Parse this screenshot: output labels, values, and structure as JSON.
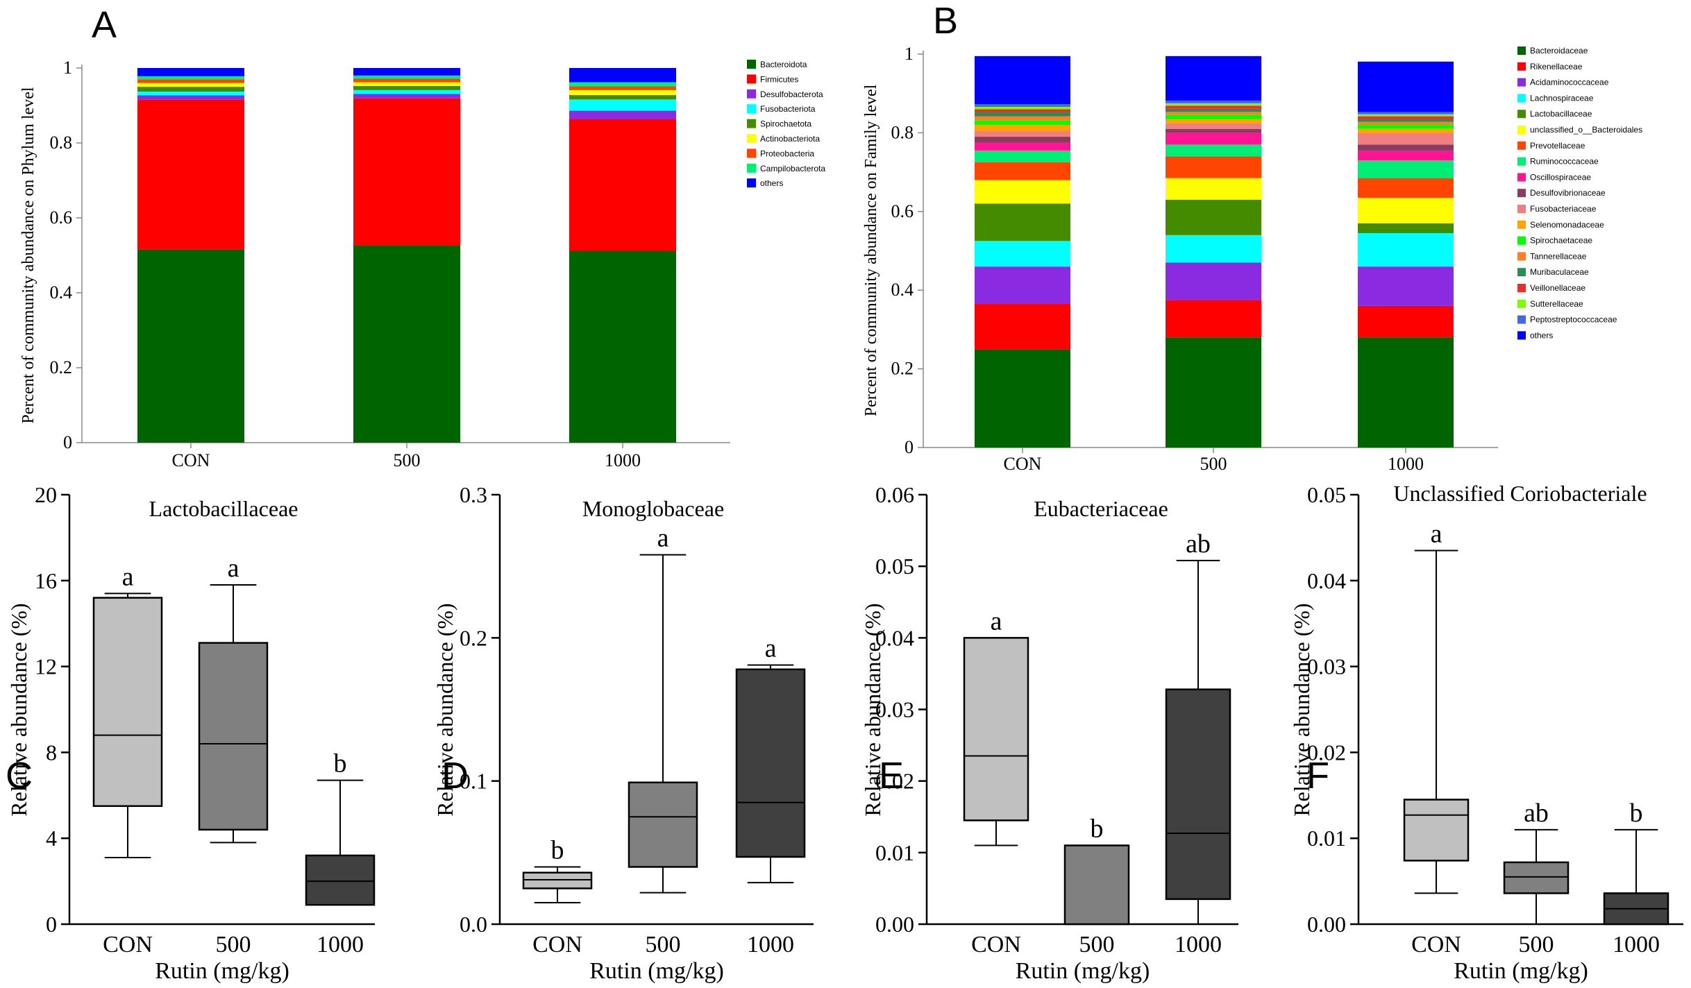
{
  "figure": {
    "background": "#ffffff"
  },
  "chart_data": [
    {
      "id": "A",
      "type": "bar",
      "stacked": true,
      "panel_label": "A",
      "ylabel": "Percent of community abundance on Phylum level",
      "xlabel": "",
      "ylim": [
        0,
        1
      ],
      "yticks": [
        0,
        0.2,
        0.4,
        0.6,
        0.8,
        1
      ],
      "ytick_labels": [
        "0",
        "0.2",
        "0.4",
        "0.6",
        "0.8",
        "1"
      ],
      "categories": [
        "CON",
        "500",
        "1000"
      ],
      "legend_position": "right",
      "series": [
        {
          "name": "Bacteroidota",
          "color": "#006400",
          "values": [
            0.515,
            0.527,
            0.512
          ]
        },
        {
          "name": "Firmicutes",
          "color": "#ff0000",
          "values": [
            0.4,
            0.392,
            0.352
          ]
        },
        {
          "name": "Desulfobacterota",
          "color": "#8a2be2",
          "values": [
            0.012,
            0.012,
            0.022
          ]
        },
        {
          "name": "Fusobacteriota",
          "color": "#00ffff",
          "values": [
            0.01,
            0.01,
            0.03
          ]
        },
        {
          "name": "Spirochaetota",
          "color": "#458b00",
          "values": [
            0.013,
            0.011,
            0.012
          ]
        },
        {
          "name": "Actinobacteriota",
          "color": "#ffff00",
          "values": [
            0.01,
            0.01,
            0.013
          ]
        },
        {
          "name": "Proteobacteria",
          "color": "#ff4500",
          "values": [
            0.01,
            0.01,
            0.01
          ]
        },
        {
          "name": "Campilobacterota",
          "color": "#00ee76",
          "values": [
            0.008,
            0.008,
            0.011
          ]
        },
        {
          "name": "others",
          "color": "#0000ff",
          "values": [
            0.022,
            0.02,
            0.038
          ]
        }
      ]
    },
    {
      "id": "B",
      "type": "bar",
      "stacked": true,
      "panel_label": "B",
      "ylabel": "Percent of community abundance on Family level",
      "xlabel": "",
      "ylim": [
        0,
        1
      ],
      "yticks": [
        0,
        0.2,
        0.4,
        0.6,
        0.8,
        1
      ],
      "ytick_labels": [
        "0",
        "0.2",
        "0.4",
        "0.6",
        "0.8",
        "1"
      ],
      "categories": [
        "CON",
        "500",
        "1000"
      ],
      "legend_position": "right",
      "series": [
        {
          "name": "Bacteroidaceae",
          "color": "#006400",
          "values": [
            0.25,
            0.28,
            0.28
          ]
        },
        {
          "name": "Rikenellaceae",
          "color": "#ff0000",
          "values": [
            0.115,
            0.095,
            0.08
          ]
        },
        {
          "name": "Acidaminococcaceae",
          "color": "#8a2be2",
          "values": [
            0.095,
            0.095,
            0.1
          ]
        },
        {
          "name": "Lachnospiraceae",
          "color": "#00ffff",
          "values": [
            0.065,
            0.07,
            0.085
          ]
        },
        {
          "name": "Lactobacillaceae",
          "color": "#458b00",
          "values": [
            0.095,
            0.09,
            0.025
          ]
        },
        {
          "name": "unclassified_o__Bacteroidales",
          "color": "#ffff00",
          "values": [
            0.06,
            0.055,
            0.065
          ]
        },
        {
          "name": "Prevotellaceae",
          "color": "#ff4500",
          "values": [
            0.045,
            0.055,
            0.05
          ]
        },
        {
          "name": "Ruminococcaceae",
          "color": "#00ee76",
          "values": [
            0.03,
            0.03,
            0.045
          ]
        },
        {
          "name": "Oscillospiraceae",
          "color": "#ff1493",
          "values": [
            0.02,
            0.03,
            0.025
          ]
        },
        {
          "name": "Desulfovibrionaceae",
          "color": "#8b3a62",
          "values": [
            0.015,
            0.01,
            0.015
          ]
        },
        {
          "name": "Fusobacteriaceae",
          "color": "#f08080",
          "values": [
            0.015,
            0.015,
            0.03
          ]
        },
        {
          "name": "Selenomonadaceae",
          "color": "#ffa500",
          "values": [
            0.015,
            0.01,
            0.01
          ]
        },
        {
          "name": "Spirochaetaceae",
          "color": "#00ff00",
          "values": [
            0.012,
            0.01,
            0.01
          ]
        },
        {
          "name": "Tannerellaceae",
          "color": "#ff7f24",
          "values": [
            0.01,
            0.008,
            0.008
          ]
        },
        {
          "name": "Muribaculaceae",
          "color": "#2e8b57",
          "values": [
            0.01,
            0.008,
            0.008
          ]
        },
        {
          "name": "Veillonellaceae",
          "color": "#ee2c2c",
          "values": [
            0.008,
            0.008,
            0.006
          ]
        },
        {
          "name": "Sutterellaceae",
          "color": "#7cfc00",
          "values": [
            0.006,
            0.006,
            0.005
          ]
        },
        {
          "name": "Peptostreptococcaceae",
          "color": "#4169e1",
          "values": [
            0.007,
            0.007,
            0.006
          ]
        },
        {
          "name": "others",
          "color": "#0000ff",
          "values": [
            0.122,
            0.113,
            0.128
          ]
        }
      ]
    },
    {
      "id": "C",
      "type": "box",
      "panel_label": "C",
      "title": "Lactobacillaceae",
      "ylabel": "Relative abundance (%)",
      "xlabel": "Rutin (mg/kg)",
      "ylim": [
        0,
        20
      ],
      "yticks": [
        0,
        4,
        8,
        12,
        16,
        20
      ],
      "ytick_labels": [
        "0",
        "4",
        "8",
        "12",
        "16",
        "20"
      ],
      "categories": [
        "CON",
        "500",
        "1000"
      ],
      "colors": [
        "#c0c0c0",
        "#808080",
        "#404040"
      ],
      "boxes": [
        {
          "min": 3.1,
          "q1": 5.5,
          "median": 8.8,
          "q3": 15.2,
          "max": 15.4
        },
        {
          "min": 3.8,
          "q1": 4.4,
          "median": 8.4,
          "q3": 13.1,
          "max": 15.8
        },
        {
          "min": 0.9,
          "q1": 0.9,
          "median": 2.0,
          "q3": 3.2,
          "max": 6.7
        }
      ],
      "letters": [
        "a",
        "a",
        "b"
      ]
    },
    {
      "id": "D",
      "type": "box",
      "panel_label": "D",
      "title": "Monoglobaceae",
      "ylabel": "Relative abundance (%)",
      "xlabel": "Rutin (mg/kg)",
      "ylim": [
        0,
        0.3
      ],
      "yticks": [
        0,
        0.1,
        0.2,
        0.3
      ],
      "ytick_labels": [
        "0.0",
        "0.1",
        "0.2",
        "0.3"
      ],
      "categories": [
        "CON",
        "500",
        "1000"
      ],
      "colors": [
        "#c0c0c0",
        "#808080",
        "#404040"
      ],
      "boxes": [
        {
          "min": 0.015,
          "q1": 0.025,
          "median": 0.031,
          "q3": 0.036,
          "max": 0.04
        },
        {
          "min": 0.022,
          "q1": 0.04,
          "median": 0.075,
          "q3": 0.099,
          "max": 0.258
        },
        {
          "min": 0.029,
          "q1": 0.047,
          "median": 0.085,
          "q3": 0.178,
          "max": 0.181
        }
      ],
      "letters": [
        "b",
        "a",
        "a"
      ]
    },
    {
      "id": "E",
      "type": "box",
      "panel_label": "E",
      "title": "Eubacteriaceae",
      "ylabel": "Relative abundance (%)",
      "xlabel": "Rutin (mg/kg)",
      "ylim": [
        0,
        0.06
      ],
      "yticks": [
        0,
        0.01,
        0.02,
        0.03,
        0.04,
        0.05,
        0.06
      ],
      "ytick_labels": [
        "0.00",
        "0.01",
        "0.02",
        "0.03",
        "0.04",
        "0.05",
        "0.06"
      ],
      "categories": [
        "CON",
        "500",
        "1000"
      ],
      "colors": [
        "#c0c0c0",
        "#808080",
        "#404040"
      ],
      "boxes": [
        {
          "min": 0.011,
          "q1": 0.0145,
          "median": 0.0235,
          "q3": 0.04,
          "max": 0.04
        },
        {
          "min": 0.0,
          "q1": 0.0,
          "median": 0.0,
          "q3": 0.011,
          "max": 0.011
        },
        {
          "min": 0.0,
          "q1": 0.0035,
          "median": 0.0127,
          "q3": 0.0328,
          "max": 0.0508
        }
      ],
      "letters": [
        "a",
        "b",
        "ab"
      ]
    },
    {
      "id": "F",
      "type": "box",
      "panel_label": "F",
      "title": "Unclassified Coriobacteriale",
      "ylabel": "Relative abundance (%)",
      "xlabel": "Rutin (mg/kg)",
      "ylim": [
        0,
        0.05
      ],
      "yticks": [
        0,
        0.01,
        0.02,
        0.03,
        0.04,
        0.05
      ],
      "ytick_labels": [
        "0.00",
        "0.01",
        "0.02",
        "0.03",
        "0.04",
        "0.05"
      ],
      "categories": [
        "CON",
        "500",
        "1000"
      ],
      "colors": [
        "#c0c0c0",
        "#808080",
        "#404040"
      ],
      "boxes": [
        {
          "min": 0.0036,
          "q1": 0.0074,
          "median": 0.0127,
          "q3": 0.0145,
          "max": 0.0435
        },
        {
          "min": 0.0,
          "q1": 0.0036,
          "median": 0.0055,
          "q3": 0.0072,
          "max": 0.011
        },
        {
          "min": 0.0,
          "q1": 0.0,
          "median": 0.0018,
          "q3": 0.0036,
          "max": 0.011
        }
      ],
      "letters": [
        "a",
        "ab",
        "b"
      ]
    }
  ]
}
